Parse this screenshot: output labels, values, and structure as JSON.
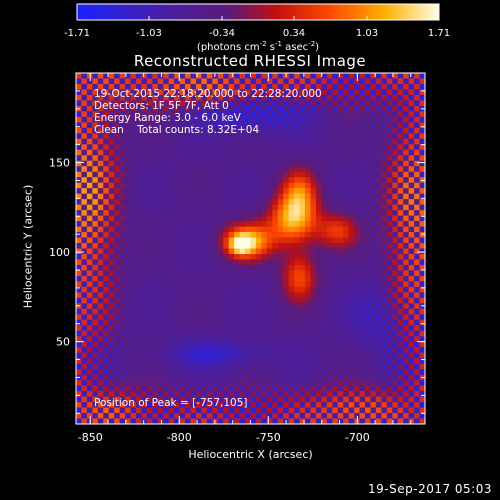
{
  "colorbar": {
    "ticks": [
      "-1.71",
      "-1.03",
      "-0.34",
      "0.34",
      "1.03",
      "1.71"
    ],
    "tick_values": [
      -1.71,
      -1.03,
      -0.34,
      0.34,
      1.03,
      1.71
    ],
    "range": [
      -1.71,
      1.71
    ],
    "units_prefix": "(photons cm",
    "units_exp1": "-2",
    "units_mid": " s",
    "units_exp2": "-1",
    "units_mid2": " asec",
    "units_exp3": "-2",
    "units_suffix": ")"
  },
  "plot": {
    "title": "Reconstructed RHESSI Image",
    "info_line1": "19-Oct-2015 22:18:20.000 to 22:28:20.000",
    "info_line2": "Detectors: 1F 5F 7F, Att 0",
    "info_line3": "Energy Range: 3.0 - 6.0 keV",
    "info_line4_a": "Clean",
    "info_line4_b": "Total counts: 8.32E+04",
    "peak_label": "Position of Peak = [-757,105]",
    "xlabel": "Heliocentric X (arcsec)",
    "ylabel": "Heliocentric Y (arcsec)",
    "xticks": [
      "-850",
      "-800",
      "-750",
      "-700"
    ],
    "xtick_values": [
      -850,
      -800,
      -750,
      -700
    ],
    "yticks": [
      "50",
      "100",
      "150"
    ],
    "ytick_values": [
      50,
      100,
      150
    ],
    "xrange": [
      -858,
      -662
    ],
    "yrange": [
      4,
      200
    ]
  },
  "footer": {
    "timestamp": "19-Sep-2017 05:03"
  },
  "colors": {
    "background": "#000000",
    "axes": "#ffffff",
    "text": "#ffffff",
    "negative_floor": "#4a1fa0",
    "negative_min": "#1a20ff",
    "positive_peak": "#ffffe0"
  },
  "image": {
    "peak_position": [
      -757,
      105
    ],
    "colormap": "blue-purple-red-yellow-white"
  }
}
